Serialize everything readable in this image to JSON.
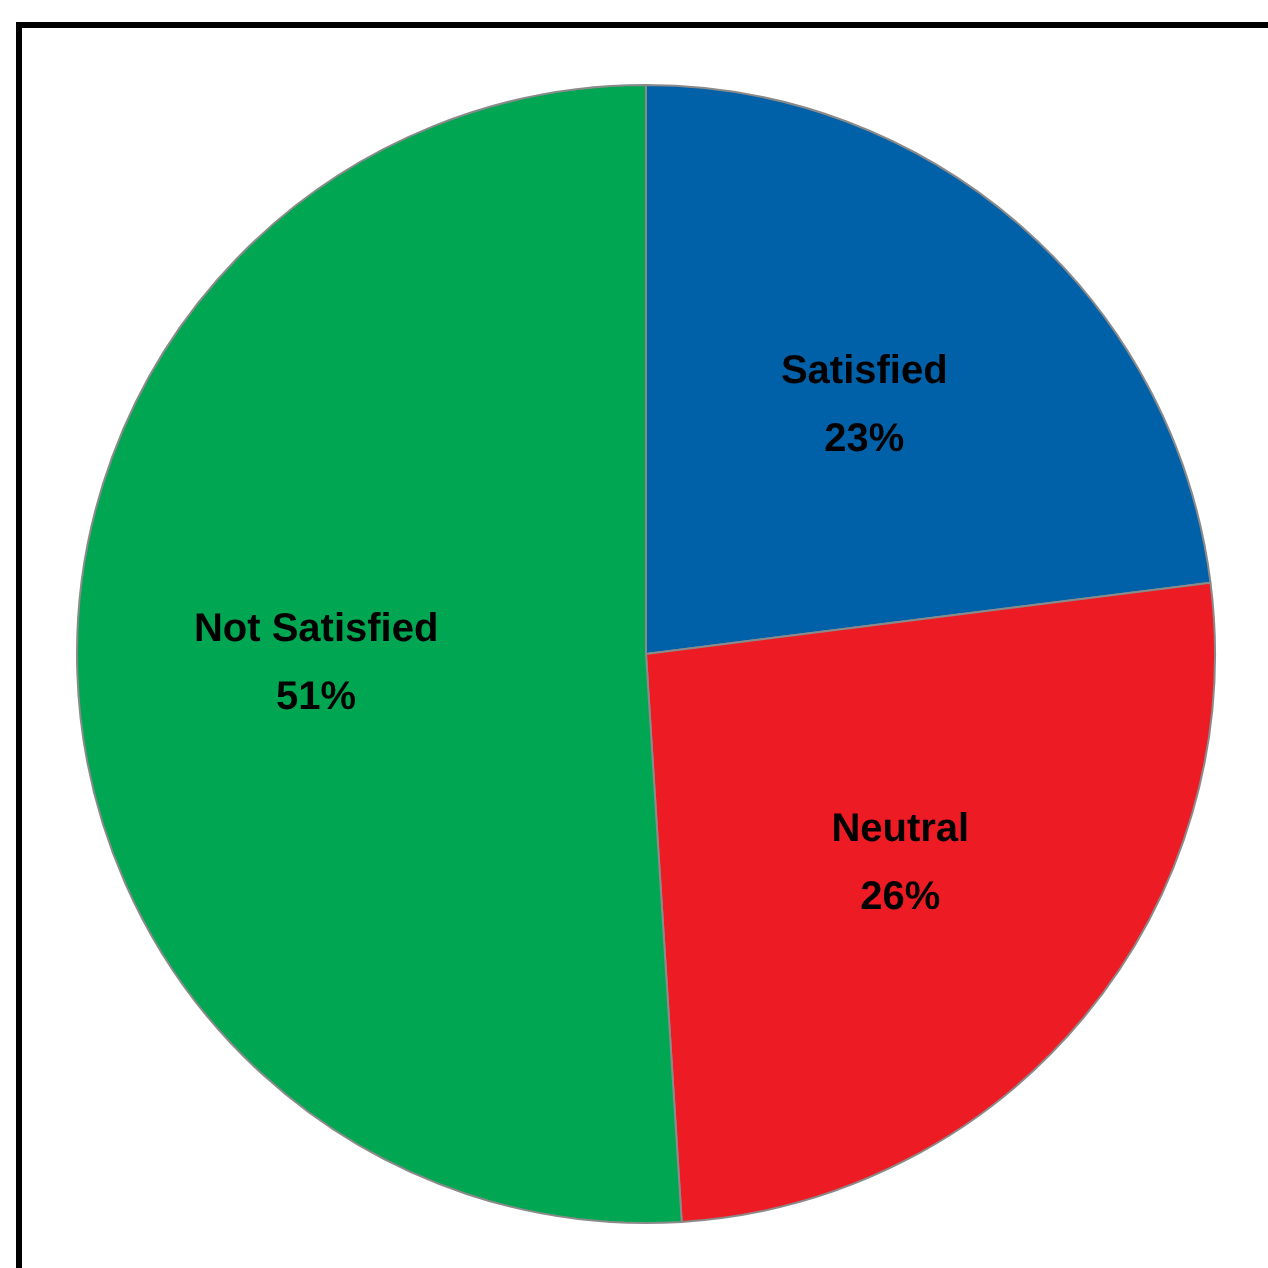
{
  "chart_data": {
    "type": "pie",
    "categories": [
      "Satisfied",
      "Neutral",
      "Not Satisfied"
    ],
    "values": [
      23,
      26,
      51
    ],
    "colors": [
      "#0061a8",
      "#ed1c24",
      "#00a651"
    ],
    "value_labels": [
      "23%",
      "26%",
      "51%"
    ],
    "legend": false
  }
}
